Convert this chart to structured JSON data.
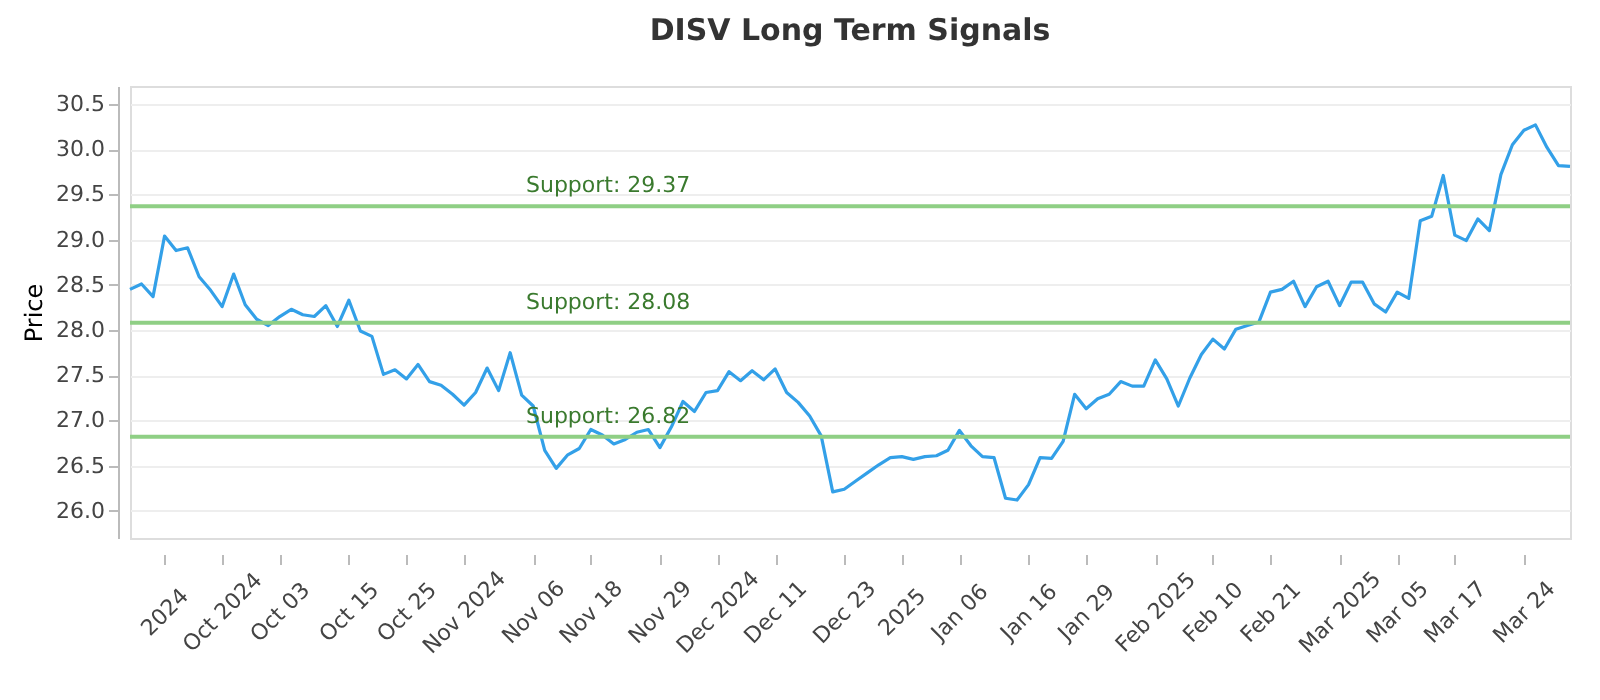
{
  "chart_data": {
    "type": "line",
    "title": "DISV Long Term Signals",
    "ylabel": "Price",
    "categories": [
      null,
      null,
      null,
      "2024",
      null,
      null,
      null,
      null,
      "Oct 2024",
      null,
      null,
      null,
      null,
      "Oct 03",
      null,
      null,
      null,
      null,
      null,
      "Oct 15",
      null,
      null,
      null,
      null,
      "Oct 25",
      null,
      null,
      null,
      null,
      "Nov 2024",
      null,
      null,
      null,
      null,
      null,
      "Nov 06",
      null,
      null,
      null,
      null,
      "Nov 18",
      null,
      null,
      null,
      null,
      null,
      "Nov 29",
      null,
      null,
      null,
      null,
      "Dec 2024",
      null,
      null,
      null,
      null,
      "Dec 11",
      null,
      null,
      null,
      null,
      null,
      "Dec 23",
      null,
      null,
      null,
      null,
      "2025",
      null,
      null,
      null,
      null,
      "Jan 06",
      null,
      null,
      null,
      null,
      null,
      "Jan 16",
      null,
      null,
      null,
      null,
      "Jan 29",
      null,
      null,
      null,
      null,
      null,
      "Feb 2025",
      null,
      null,
      null,
      null,
      "Feb 10",
      null,
      null,
      null,
      null,
      "Feb 21",
      null,
      null,
      null,
      null,
      null,
      "Mar 2025",
      null,
      null,
      null,
      null,
      "Mar 05",
      null,
      null,
      null,
      null,
      "Mar 17",
      null,
      null,
      null,
      null,
      null,
      "Mar 24",
      null,
      null,
      null,
      null
    ],
    "series": [
      {
        "color": "#33a0e8",
        "values": [
          28.45,
          28.51,
          28.37,
          29.04,
          28.88,
          28.91,
          28.59,
          28.44,
          28.26,
          28.62,
          28.28,
          28.12,
          28.05,
          28.15,
          28.23,
          28.17,
          28.15,
          28.27,
          28.04,
          28.33,
          27.99,
          27.93,
          27.51,
          27.56,
          27.46,
          27.62,
          27.43,
          27.39,
          27.29,
          27.17,
          27.31,
          27.58,
          27.33,
          27.75,
          27.28,
          27.16,
          26.67,
          26.47,
          26.62,
          26.69,
          26.9,
          26.84,
          26.74,
          26.79,
          26.87,
          26.9,
          26.7,
          26.93,
          27.21,
          27.1,
          27.31,
          27.33,
          27.54,
          27.44,
          27.55,
          27.45,
          27.57,
          27.31,
          27.2,
          27.05,
          26.83,
          26.21,
          26.24,
          26.33,
          26.42,
          26.51,
          26.59,
          26.6,
          26.57,
          26.6,
          26.61,
          26.67,
          26.89,
          26.72,
          26.6,
          26.59,
          26.14,
          26.12,
          26.29,
          26.59,
          26.58,
          26.77,
          27.29,
          27.13,
          27.24,
          27.29,
          27.43,
          27.38,
          27.38,
          27.67,
          27.46,
          27.16,
          27.47,
          27.73,
          27.9,
          27.79,
          28.01,
          28.05,
          28.09,
          28.42,
          28.45,
          28.54,
          28.26,
          28.48,
          28.54,
          28.27,
          28.53,
          28.53,
          28.29,
          28.2,
          28.42,
          28.35,
          29.21,
          29.26,
          29.71,
          29.05,
          28.99,
          29.23,
          29.1,
          29.72,
          30.05,
          30.21,
          30.27,
          30.02,
          29.82,
          29.81
        ]
      }
    ],
    "ylim": [
      25.7,
      30.7
    ],
    "yticks": [
      {
        "value": 26,
        "label": "26.0"
      },
      {
        "value": 26.5,
        "label": "26.5"
      },
      {
        "value": 27,
        "label": "27.0"
      },
      {
        "value": 27.5,
        "label": "27.5"
      },
      {
        "value": 28,
        "label": "28.0"
      },
      {
        "value": 28.5,
        "label": "28.5"
      },
      {
        "value": 29,
        "label": "29.0"
      },
      {
        "value": 29.5,
        "label": "29.5"
      },
      {
        "value": 30,
        "label": "30.0"
      },
      {
        "value": 30.5,
        "label": "30.5"
      }
    ],
    "ref_lines": [
      {
        "axis": "y",
        "value": 29.37,
        "label": "Support: 29.37",
        "color": "#8fcf85"
      },
      {
        "axis": "y",
        "value": 28.08,
        "label": "Support: 28.08",
        "color": "#8fcf85"
      },
      {
        "axis": "y",
        "value": 26.82,
        "label": "Support: 26.82",
        "color": "#8fcf85"
      }
    ],
    "grid": "y",
    "marker": "none",
    "line_style": "solid"
  }
}
